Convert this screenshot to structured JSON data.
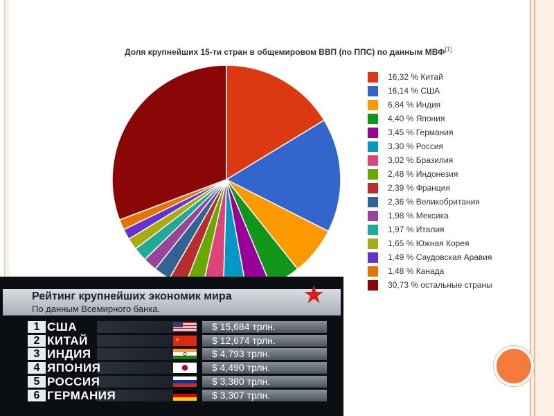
{
  "chart_data": {
    "type": "pie",
    "title": "Доля крупнейших 15-ти стран в общемировом ВВП (по ППС) по данным МВФ",
    "title_ref": "[1]",
    "legend_position": "right",
    "slices": [
      {
        "label": "16,32 % Китай",
        "value": 16.32,
        "color": "#dc3912"
      },
      {
        "label": "16,14 % США",
        "value": 16.14,
        "color": "#3366cc"
      },
      {
        "label": "6,84 % Индия",
        "value": 6.84,
        "color": "#ff9900"
      },
      {
        "label": "4,40 % Япония",
        "value": 4.4,
        "color": "#109618"
      },
      {
        "label": "3,45 % Германия",
        "value": 3.45,
        "color": "#990099"
      },
      {
        "label": "3,30 % Россия",
        "value": 3.3,
        "color": "#0099c6"
      },
      {
        "label": "3,02 % Бразилия",
        "value": 3.02,
        "color": "#dd4477"
      },
      {
        "label": "2,48 % Индонезия",
        "value": 2.48,
        "color": "#66aa00"
      },
      {
        "label": "2,39 % Франция",
        "value": 2.39,
        "color": "#b82e2e"
      },
      {
        "label": "2,36 % Великобритания",
        "value": 2.36,
        "color": "#316395"
      },
      {
        "label": "1,98 % Мексика",
        "value": 1.98,
        "color": "#994499"
      },
      {
        "label": "1,97 % Италия",
        "value": 1.97,
        "color": "#22aa99"
      },
      {
        "label": "1,65 % Южная Корея",
        "value": 1.65,
        "color": "#aaaa11"
      },
      {
        "label": "1,49 % Саудовская Аравия",
        "value": 1.49,
        "color": "#6633cc"
      },
      {
        "label": "1,48 % Канада",
        "value": 1.48,
        "color": "#e67300"
      },
      {
        "label": "30,73 % остальные страны",
        "value": 30.73,
        "color": "#8b0707"
      }
    ]
  },
  "rating": {
    "title": "Рейтинг крупнейших экономик мира",
    "subtitle": "По данным Всемирного банка.",
    "rows": [
      {
        "rank": "1",
        "country": "США",
        "value": "$ 15,684 трлн.",
        "flag": "us-flag"
      },
      {
        "rank": "2",
        "country": "КИТАЙ",
        "value": "$ 12,674 трлн.",
        "flag": "cn-flag"
      },
      {
        "rank": "3",
        "country": "ИНДИЯ",
        "value": "$ 4,793 трлн.",
        "flag": "in-flag"
      },
      {
        "rank": "4",
        "country": "ЯПОНИЯ",
        "value": "$ 4,490 трлн.",
        "flag": "jp-flag"
      },
      {
        "rank": "5",
        "country": "РОССИЯ",
        "value": "$ 3,380 трлн.",
        "flag": "ru-flag"
      },
      {
        "rank": "6",
        "country": "ГЕРМАНИЯ",
        "value": "$ 3,307 трлн.",
        "flag": "de-flag"
      }
    ]
  }
}
